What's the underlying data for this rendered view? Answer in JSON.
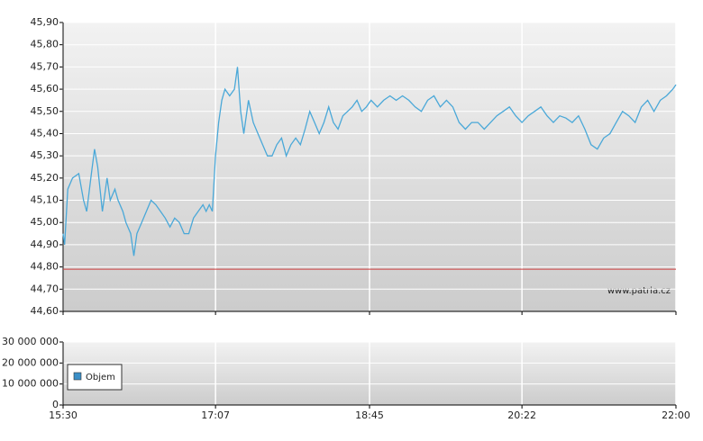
{
  "chart_data": [
    {
      "type": "line",
      "x": [
        "15:30",
        "15:31",
        "15:33",
        "15:36",
        "15:40",
        "15:43",
        "15:45",
        "15:48",
        "15:50",
        "15:52",
        "15:55",
        "15:58",
        "16:00",
        "16:03",
        "16:05",
        "16:08",
        "16:10",
        "16:13",
        "16:15",
        "16:17",
        "16:20",
        "16:23",
        "16:26",
        "16:29",
        "16:32",
        "16:35",
        "16:38",
        "16:41",
        "16:44",
        "16:47",
        "16:50",
        "16:53",
        "16:56",
        "16:59",
        "17:01",
        "17:03",
        "17:05",
        "17:07",
        "17:09",
        "17:11",
        "17:13",
        "17:16",
        "17:19",
        "17:21",
        "17:23",
        "17:25",
        "17:28",
        "17:31",
        "17:34",
        "17:37",
        "17:40",
        "17:43",
        "17:46",
        "17:49",
        "17:52",
        "17:55",
        "17:58",
        "18:01",
        "18:04",
        "18:07",
        "18:10",
        "18:13",
        "18:16",
        "18:19",
        "18:22",
        "18:25",
        "18:28",
        "18:31",
        "18:34",
        "18:37",
        "18:40",
        "18:43",
        "18:46",
        "18:50",
        "18:54",
        "18:58",
        "19:02",
        "19:06",
        "19:10",
        "19:14",
        "19:18",
        "19:22",
        "19:26",
        "19:30",
        "19:34",
        "19:38",
        "19:42",
        "19:46",
        "19:50",
        "19:54",
        "19:58",
        "20:02",
        "20:06",
        "20:10",
        "20:14",
        "20:18",
        "20:22",
        "20:26",
        "20:30",
        "20:34",
        "20:38",
        "20:42",
        "20:46",
        "20:50",
        "20:54",
        "20:58",
        "21:02",
        "21:06",
        "21:10",
        "21:14",
        "21:18",
        "21:22",
        "21:26",
        "21:30",
        "21:34",
        "21:38",
        "21:42",
        "21:46",
        "21:50",
        "21:54",
        "21:58",
        "22:00"
      ],
      "series": [
        {
          "color": "#4aa8d8",
          "values": [
            44.95,
            44.9,
            45.15,
            45.2,
            45.22,
            45.1,
            45.05,
            45.22,
            45.33,
            45.25,
            45.05,
            45.2,
            45.1,
            45.15,
            45.1,
            45.05,
            45.0,
            44.95,
            44.85,
            44.95,
            45.0,
            45.05,
            45.1,
            45.08,
            45.05,
            45.02,
            44.98,
            45.02,
            45.0,
            44.95,
            44.95,
            45.02,
            45.05,
            45.08,
            45.05,
            45.08,
            45.05,
            45.3,
            45.45,
            45.55,
            45.6,
            45.57,
            45.6,
            45.7,
            45.5,
            45.4,
            45.55,
            45.45,
            45.4,
            45.35,
            45.3,
            45.3,
            45.35,
            45.38,
            45.3,
            45.35,
            45.38,
            45.35,
            45.42,
            45.5,
            45.45,
            45.4,
            45.45,
            45.52,
            45.45,
            45.42,
            45.48,
            45.5,
            45.52,
            45.55,
            45.5,
            45.52,
            45.55,
            45.52,
            45.55,
            45.57,
            45.55,
            45.57,
            45.55,
            45.52,
            45.5,
            45.55,
            45.57,
            45.52,
            45.55,
            45.52,
            45.45,
            45.42,
            45.45,
            45.45,
            45.42,
            45.45,
            45.48,
            45.5,
            45.52,
            45.48,
            45.45,
            45.48,
            45.5,
            45.52,
            45.48,
            45.45,
            45.48,
            45.47,
            45.45,
            45.48,
            45.42,
            45.35,
            45.33,
            45.38,
            45.4,
            45.45,
            45.5,
            45.48,
            45.45,
            45.52,
            45.55,
            45.5,
            45.55,
            45.57,
            45.6,
            45.62
          ]
        }
      ],
      "xlim": [
        "15:30",
        "22:00"
      ],
      "xticks": [
        "15:30",
        "17:07",
        "18:45",
        "20:22",
        "22:00"
      ],
      "ylim": [
        44.6,
        45.9
      ],
      "yticks": [
        {
          "value": 44.6,
          "label": "44,60"
        },
        {
          "value": 44.7,
          "label": "44,70"
        },
        {
          "value": 44.8,
          "label": "44,80"
        },
        {
          "value": 44.9,
          "label": "44,90"
        },
        {
          "value": 45.0,
          "label": "45,00"
        },
        {
          "value": 45.1,
          "label": "45,10"
        },
        {
          "value": 45.2,
          "label": "45,20"
        },
        {
          "value": 45.3,
          "label": "45,30"
        },
        {
          "value": 45.4,
          "label": "45,40"
        },
        {
          "value": 45.5,
          "label": "45,50"
        },
        {
          "value": 45.6,
          "label": "45,60"
        },
        {
          "value": 45.7,
          "label": "45,70"
        },
        {
          "value": 45.8,
          "label": "45,80"
        },
        {
          "value": 45.9,
          "label": "45,90"
        }
      ],
      "reference_line": 44.79,
      "reference_color": "#d04040",
      "annotation": "www.patria.cz",
      "grid": true
    },
    {
      "type": "bar",
      "series": [
        {
          "name": "Objem",
          "color": "#3b8fc7"
        }
      ],
      "ylim": [
        0,
        30000000
      ],
      "yticks": [
        0,
        {
          "value": 10000000,
          "label": "10 000 000"
        },
        {
          "value": 20000000,
          "label": "20 000 000"
        },
        {
          "value": 30000000,
          "label": "30 000 000"
        }
      ],
      "grid": true,
      "legend": "lower left"
    }
  ]
}
